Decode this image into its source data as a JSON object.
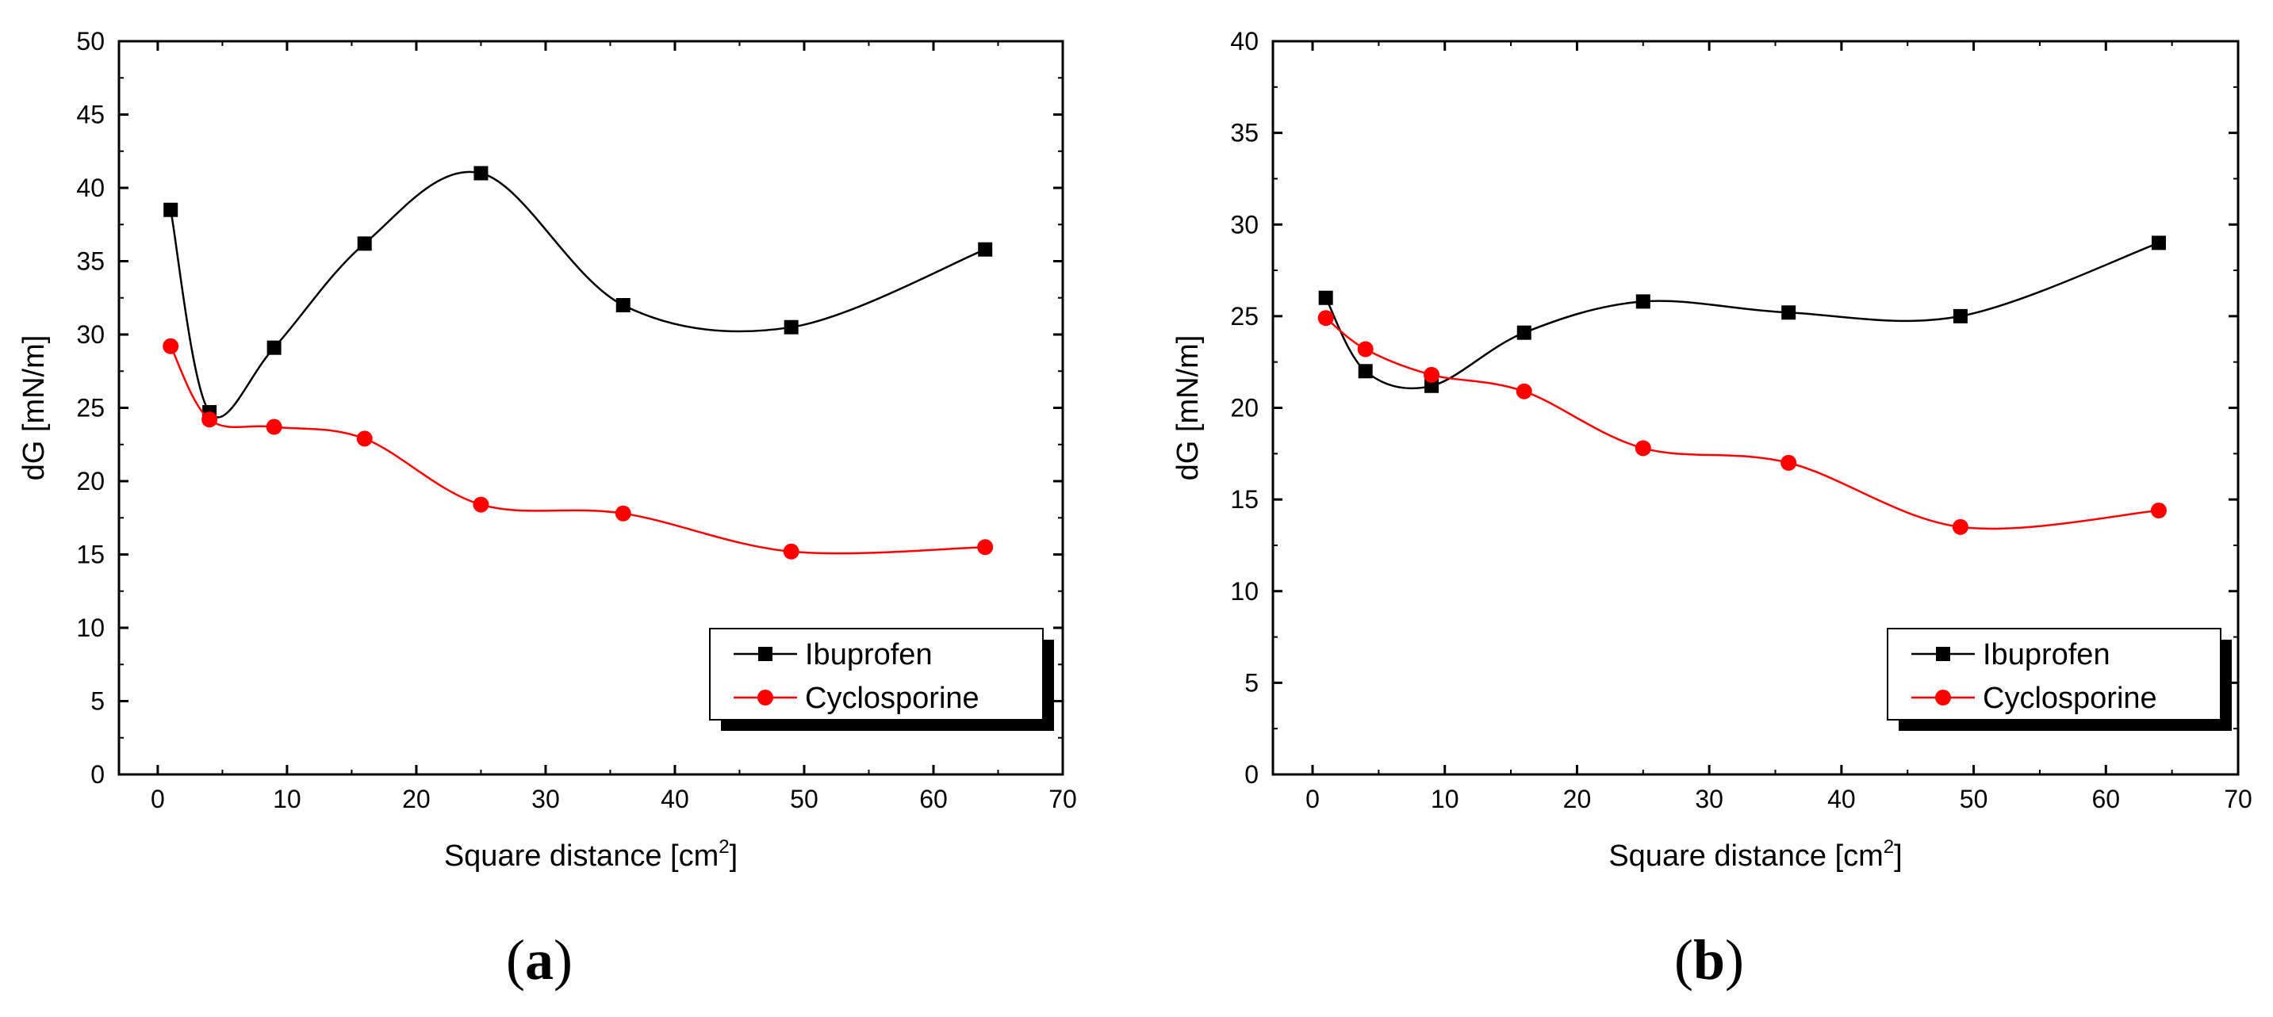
{
  "colors": {
    "ibuprofen": "#000000",
    "cyclosporine": "#ff0000",
    "axis": "#000000"
  },
  "chart_data": [
    {
      "panel": "a",
      "type": "scatter",
      "xlabel": "Square distance [cm",
      "xlabel_sup": "2",
      "xlabel_end": "]",
      "ylabel": "dG [mN/m]",
      "xlim": [
        -3,
        70
      ],
      "ylim": [
        0,
        50
      ],
      "xticks": [
        0,
        10,
        20,
        30,
        40,
        50,
        60,
        70
      ],
      "yticks": [
        0,
        5,
        10,
        15,
        20,
        25,
        30,
        35,
        40,
        45,
        50
      ],
      "legend_position": "bottom-right",
      "label_open": "(",
      "label_letter": "a",
      "label_close": ")",
      "series": [
        {
          "name": "Ibuprofen",
          "marker": "square",
          "color": "#000000",
          "x": [
            1,
            4,
            9,
            16,
            25,
            36,
            49,
            64
          ],
          "y": [
            38.5,
            24.7,
            29.1,
            36.2,
            41.0,
            32.0,
            30.5,
            35.8
          ]
        },
        {
          "name": "Cyclosporine",
          "marker": "circle",
          "color": "#ff0000",
          "x": [
            1,
            4,
            9,
            16,
            25,
            36,
            49,
            64
          ],
          "y": [
            29.2,
            24.2,
            23.7,
            22.9,
            18.4,
            17.8,
            15.2,
            15.5
          ]
        }
      ]
    },
    {
      "panel": "b",
      "type": "scatter",
      "xlabel": "Square distance [cm",
      "xlabel_sup": "2",
      "xlabel_end": "]",
      "ylabel": "dG [mN/m]",
      "xlim": [
        -3,
        70
      ],
      "ylim": [
        0,
        40
      ],
      "xticks": [
        0,
        10,
        20,
        30,
        40,
        50,
        60,
        70
      ],
      "yticks": [
        0,
        5,
        10,
        15,
        20,
        25,
        30,
        35,
        40
      ],
      "legend_position": "bottom-right",
      "label_open": "(",
      "label_letter": "b",
      "label_close": ")",
      "series": [
        {
          "name": "Ibuprofen",
          "marker": "square",
          "color": "#000000",
          "x": [
            1,
            4,
            9,
            16,
            25,
            36,
            49,
            64
          ],
          "y": [
            26.0,
            22.0,
            21.2,
            24.1,
            25.8,
            25.2,
            25.0,
            29.0
          ]
        },
        {
          "name": "Cyclosporine",
          "marker": "circle",
          "color": "#ff0000",
          "x": [
            1,
            4,
            9,
            16,
            25,
            36,
            49,
            64
          ],
          "y": [
            24.9,
            23.2,
            21.8,
            20.9,
            17.8,
            17.0,
            13.5,
            14.4
          ]
        }
      ]
    }
  ]
}
